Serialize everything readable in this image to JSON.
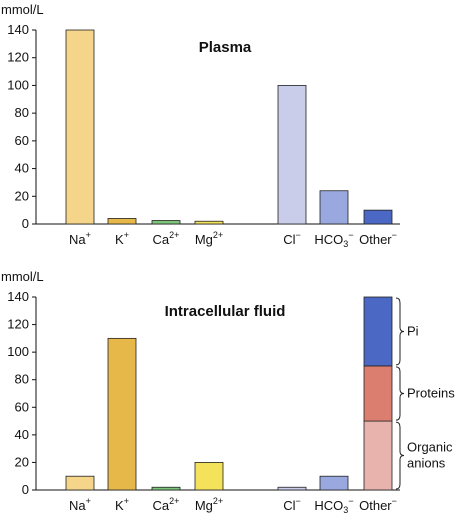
{
  "chart_data": [
    {
      "type": "bar",
      "title": "Plasma",
      "ylabel": "mmol/L",
      "ylim": [
        0,
        140
      ],
      "yticks": [
        0,
        20,
        40,
        60,
        80,
        100,
        120,
        140
      ],
      "categories": [
        {
          "base": "Na",
          "sup": "+",
          "sub": ""
        },
        {
          "base": "K",
          "sup": "+",
          "sub": ""
        },
        {
          "base": "Ca",
          "sup": "2+",
          "sub": ""
        },
        {
          "base": "Mg",
          "sup": "2+",
          "sub": ""
        },
        {
          "base": "Cl",
          "sup": "−",
          "sub": ""
        },
        {
          "base": "HCO",
          "sup": "−",
          "sub": "3"
        },
        {
          "base": "Other",
          "sup": "−",
          "sub": ""
        }
      ],
      "values": [
        140,
        4,
        2.5,
        2,
        100,
        24,
        10
      ],
      "colors": [
        "#f5d58a",
        "#e6b84a",
        "#7cc57a",
        "#f4e25a",
        "#c9cdea",
        "#9aa8e0",
        "#4a68c4"
      ]
    },
    {
      "type": "bar",
      "title": "Intracellular fluid",
      "ylabel": "mmol/L",
      "ylim": [
        0,
        140
      ],
      "yticks": [
        0,
        20,
        40,
        60,
        80,
        100,
        120,
        140
      ],
      "categories": [
        {
          "base": "Na",
          "sup": "+",
          "sub": ""
        },
        {
          "base": "K",
          "sup": "+",
          "sub": ""
        },
        {
          "base": "Ca",
          "sup": "2+",
          "sub": ""
        },
        {
          "base": "Mg",
          "sup": "2+",
          "sub": ""
        },
        {
          "base": "Cl",
          "sup": "−",
          "sub": ""
        },
        {
          "base": "HCO",
          "sup": "−",
          "sub": "3"
        },
        {
          "base": "Other",
          "sup": "−",
          "sub": ""
        }
      ],
      "values": [
        10,
        110,
        2,
        20,
        2,
        10,
        null
      ],
      "colors": [
        "#f5d58a",
        "#e6b84a",
        "#7cc57a",
        "#f4e25a",
        "#c9cdea",
        "#9aa8e0",
        "#4a68c4"
      ],
      "stacked_last": [
        {
          "name": "Organic anions",
          "lines": [
            "Organic",
            "anions"
          ],
          "value": 50,
          "color": "#e8b3ad"
        },
        {
          "name": "Proteins",
          "lines": [
            "Proteins"
          ],
          "value": 40,
          "color": "#db7e70"
        },
        {
          "name": "Pi",
          "lines": [
            "Pi"
          ],
          "value": 50,
          "color": "#4a68c4"
        }
      ]
    }
  ]
}
